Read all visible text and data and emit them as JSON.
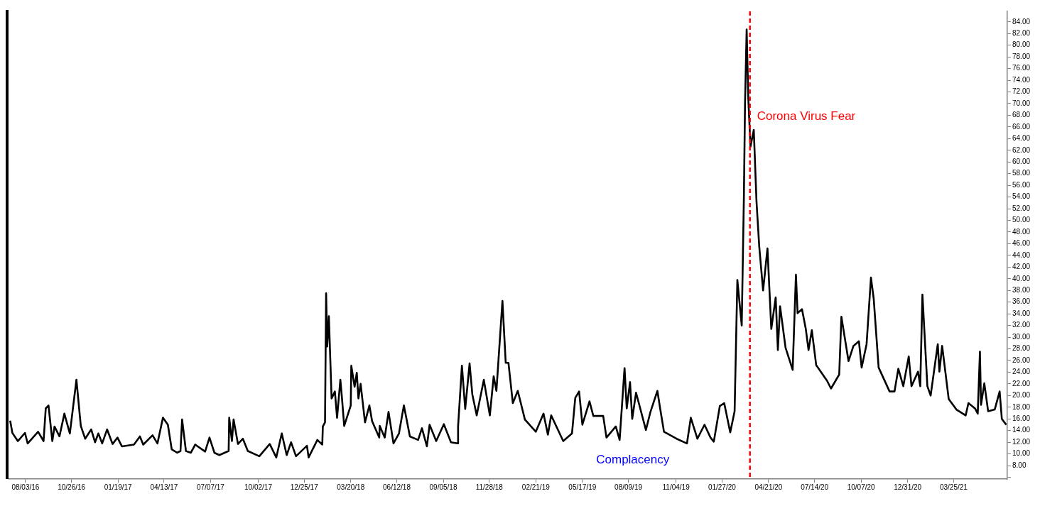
{
  "chart_data": {
    "type": "line",
    "x": [
      "2016-07-06",
      "2016-07-10",
      "2016-07-20",
      "2016-08-02",
      "2016-08-07",
      "2016-08-26",
      "2016-09-05",
      "2016-09-09",
      "2016-09-14",
      "2016-09-21",
      "2016-09-25",
      "2016-10-04",
      "2016-10-13",
      "2016-10-23",
      "2016-11-04",
      "2016-11-12",
      "2016-11-20",
      "2016-12-01",
      "2016-12-08",
      "2016-12-14",
      "2016-12-21",
      "2016-12-30",
      "2017-01-09",
      "2017-01-18",
      "2017-01-26",
      "2017-02-17",
      "2017-02-28",
      "2017-03-06",
      "2017-03-23",
      "2017-04-01",
      "2017-04-11",
      "2017-04-20",
      "2017-04-27",
      "2017-05-07",
      "2017-05-13",
      "2017-05-16",
      "2017-05-23",
      "2017-06-01",
      "2017-06-09",
      "2017-06-27",
      "2017-07-05",
      "2017-07-14",
      "2017-07-23",
      "2017-08-09",
      "2017-08-10",
      "2017-08-15",
      "2017-08-18",
      "2017-08-26",
      "2017-09-04",
      "2017-09-13",
      "2017-10-04",
      "2017-10-23",
      "2017-11-04",
      "2017-11-14",
      "2017-11-23",
      "2017-12-01",
      "2017-12-10",
      "2017-12-30",
      "2018-01-02",
      "2018-01-18",
      "2018-01-27",
      "2018-01-28",
      "2018-02-01",
      "2018-02-03",
      "2018-02-05",
      "2018-02-08",
      "2018-02-13",
      "2018-02-19",
      "2018-02-23",
      "2018-03-01",
      "2018-03-04",
      "2018-03-08",
      "2018-03-20",
      "2018-03-21",
      "2018-03-27",
      "2018-03-31",
      "2018-04-03",
      "2018-04-07",
      "2018-04-15",
      "2018-04-23",
      "2018-04-28",
      "2018-05-11",
      "2018-05-12",
      "2018-05-21",
      "2018-05-28",
      "2018-06-06",
      "2018-06-16",
      "2018-06-25",
      "2018-07-06",
      "2018-07-21",
      "2018-07-28",
      "2018-08-06",
      "2018-08-11",
      "2018-08-23",
      "2018-09-06",
      "2018-09-19",
      "2018-10-01",
      "2018-10-02",
      "2018-10-09",
      "2018-10-15",
      "2018-10-23",
      "2018-10-28",
      "2018-11-05",
      "2018-11-18",
      "2018-11-29",
      "2018-12-06",
      "2018-12-11",
      "2018-12-22",
      "2018-12-28",
      "2019-01-02",
      "2019-01-10",
      "2019-01-19",
      "2019-02-01",
      "2019-02-21",
      "2019-03-07",
      "2019-03-15",
      "2019-03-21",
      "2019-04-12",
      "2019-04-28",
      "2019-05-04",
      "2019-05-11",
      "2019-05-17",
      "2019-05-30",
      "2019-06-06",
      "2019-06-24",
      "2019-06-30",
      "2019-07-17",
      "2019-07-24",
      "2019-08-02",
      "2019-08-06",
      "2019-08-12",
      "2019-08-16",
      "2019-08-23",
      "2019-09-10",
      "2019-09-18",
      "2019-10-01",
      "2019-10-06",
      "2019-10-13",
      "2019-11-05",
      "2019-11-24",
      "2019-12-01",
      "2019-12-13",
      "2019-12-26",
      "2020-01-06",
      "2020-01-12",
      "2020-01-23",
      "2020-01-31",
      "2020-02-11",
      "2020-02-19",
      "2020-02-24",
      "2020-03-03",
      "2020-03-07",
      "2020-03-09",
      "2020-03-12",
      "2020-03-15",
      "2020-03-19",
      "2020-03-25",
      "2020-03-30",
      "2020-04-04",
      "2020-04-11",
      "2020-04-19",
      "2020-04-26",
      "2020-05-04",
      "2020-05-08",
      "2020-05-12",
      "2020-05-22",
      "2020-06-04",
      "2020-06-10",
      "2020-06-13",
      "2020-06-21",
      "2020-06-28",
      "2020-07-03",
      "2020-07-09",
      "2020-07-17",
      "2020-08-06",
      "2020-08-13",
      "2020-08-28",
      "2020-09-01",
      "2020-09-14",
      "2020-09-23",
      "2020-10-03",
      "2020-10-08",
      "2020-10-17",
      "2020-10-25",
      "2020-10-30",
      "2020-11-08",
      "2020-11-28",
      "2020-12-07",
      "2020-12-14",
      "2020-12-23",
      "2021-01-02",
      "2021-01-07",
      "2021-01-19",
      "2021-01-23",
      "2021-01-27",
      "2021-02-05",
      "2021-02-11",
      "2021-02-24",
      "2021-02-27",
      "2021-03-04",
      "2021-03-16",
      "2021-03-30",
      "2021-04-16",
      "2021-04-21",
      "2021-05-03",
      "2021-05-08",
      "2021-05-12",
      "2021-05-14",
      "2021-05-20",
      "2021-05-27",
      "2021-06-08",
      "2021-06-17",
      "2021-06-21",
      "2021-06-29"
    ],
    "series": [
      {
        "color": "#000000",
        "values": [
          15.7,
          13.6,
          12.2,
          13.6,
          11.8,
          13.8,
          12.2,
          17.8,
          18.3,
          12.2,
          14.7,
          13.0,
          16.9,
          13.5,
          22.7,
          14.8,
          12.6,
          14.2,
          12.0,
          13.5,
          11.8,
          14.2,
          11.7,
          12.8,
          11.3,
          11.6,
          13.0,
          11.6,
          13.2,
          11.8,
          16.2,
          15.0,
          10.8,
          10.2,
          10.5,
          15.9,
          10.5,
          10.2,
          11.6,
          10.4,
          12.8,
          10.2,
          9.8,
          10.5,
          16.2,
          12.2,
          15.9,
          11.7,
          12.6,
          10.5,
          9.6,
          11.7,
          9.4,
          13.5,
          9.8,
          12.0,
          9.6,
          11.4,
          9.4,
          12.4,
          11.6,
          14.7,
          15.4,
          37.5,
          28.4,
          33.6,
          19.5,
          20.7,
          16.2,
          22.7,
          19.5,
          14.8,
          18.3,
          25.1,
          21.5,
          23.9,
          19.5,
          22.0,
          15.4,
          18.3,
          15.6,
          12.8,
          14.8,
          12.8,
          17.2,
          11.8,
          13.5,
          18.3,
          13.0,
          12.4,
          14.4,
          11.3,
          15.0,
          12.2,
          15.1,
          12.0,
          11.8,
          14.7,
          25.1,
          17.7,
          25.5,
          20.2,
          16.6,
          22.7,
          16.6,
          23.3,
          20.8,
          36.2,
          25.6,
          25.6,
          18.7,
          20.8,
          15.9,
          13.8,
          16.9,
          13.3,
          16.6,
          12.2,
          13.5,
          19.6,
          20.7,
          15.0,
          19.0,
          16.5,
          16.5,
          12.8,
          14.7,
          12.4,
          24.7,
          17.8,
          22.3,
          16.0,
          20.5,
          14.1,
          17.1,
          20.8,
          17.8,
          13.8,
          12.6,
          11.8,
          16.2,
          12.6,
          15.0,
          12.8,
          12.1,
          18.2,
          18.7,
          13.7,
          17.3,
          39.8,
          32.0,
          54.3,
          69.9,
          82.7,
          70.9,
          62.6,
          65.5,
          53.2,
          45.5,
          38.0,
          45.2,
          31.4,
          36.8,
          27.8,
          35.3,
          28.2,
          24.4,
          40.7,
          34.1,
          34.8,
          31.4,
          27.8,
          31.2,
          25.2,
          22.5,
          21.2,
          23.6,
          33.5,
          25.9,
          28.5,
          29.3,
          24.8,
          28.8,
          40.2,
          36.6,
          24.8,
          20.7,
          20.7,
          24.6,
          21.6,
          26.7,
          21.6,
          24.1,
          21.6,
          37.3,
          21.6,
          20.0,
          28.8,
          24.1,
          28.5,
          19.4,
          17.6,
          16.6,
          18.7,
          17.8,
          16.9,
          27.5,
          18.4,
          22.1,
          17.3,
          17.6,
          20.7,
          16.0,
          15.0
        ]
      }
    ],
    "xlim": [
      "2016-07-03",
      "2021-07-01"
    ],
    "xticks": [
      {
        "value": "2016-08-03",
        "label": "08/03/16"
      },
      {
        "value": "2016-10-26",
        "label": "10/26/16"
      },
      {
        "value": "2017-01-19",
        "label": "01/19/17"
      },
      {
        "value": "2017-04-13",
        "label": "04/13/17"
      },
      {
        "value": "2017-07-07",
        "label": "07/07/17"
      },
      {
        "value": "2017-10-02",
        "label": "10/02/17"
      },
      {
        "value": "2017-12-25",
        "label": "12/25/17"
      },
      {
        "value": "2018-03-20",
        "label": "03/20/18"
      },
      {
        "value": "2018-06-12",
        "label": "06/12/18"
      },
      {
        "value": "2018-09-05",
        "label": "09/05/18"
      },
      {
        "value": "2018-11-28",
        "label": "11/28/18"
      },
      {
        "value": "2019-02-21",
        "label": "02/21/19"
      },
      {
        "value": "2019-05-17",
        "label": "05/17/19"
      },
      {
        "value": "2019-08-09",
        "label": "08/09/19"
      },
      {
        "value": "2019-11-04",
        "label": "11/04/19"
      },
      {
        "value": "2020-01-27",
        "label": "01/27/20"
      },
      {
        "value": "2020-04-21",
        "label": "04/21/20"
      },
      {
        "value": "2020-07-14",
        "label": "07/14/20"
      },
      {
        "value": "2020-10-07",
        "label": "10/07/20"
      },
      {
        "value": "2020-12-31",
        "label": "12/31/20"
      },
      {
        "value": "2021-03-25",
        "label": "03/25/21"
      }
    ],
    "ylim": [
      5.7,
      85.8
    ],
    "yticks": [
      {
        "value": 6,
        "label": null
      },
      {
        "value": 8,
        "label": "8.00"
      },
      {
        "value": 10,
        "label": "10.00"
      },
      {
        "value": 12,
        "label": "12.00"
      },
      {
        "value": 14,
        "label": "14.00"
      },
      {
        "value": 16,
        "label": "16.00"
      },
      {
        "value": 18,
        "label": "18.00"
      },
      {
        "value": 20,
        "label": "20.00"
      },
      {
        "value": 22,
        "label": "22.00"
      },
      {
        "value": 24,
        "label": "24.00"
      },
      {
        "value": 26,
        "label": "26.00"
      },
      {
        "value": 28,
        "label": "28.00"
      },
      {
        "value": 30,
        "label": "30.00"
      },
      {
        "value": 32,
        "label": "32.00"
      },
      {
        "value": 34,
        "label": "34.00"
      },
      {
        "value": 36,
        "label": "36.00"
      },
      {
        "value": 38,
        "label": "38.00"
      },
      {
        "value": 40,
        "label": "40.00"
      },
      {
        "value": 42,
        "label": "42.00"
      },
      {
        "value": 44,
        "label": "44.00"
      },
      {
        "value": 46,
        "label": "46.00"
      },
      {
        "value": 48,
        "label": "48.00"
      },
      {
        "value": 50,
        "label": "50.00"
      },
      {
        "value": 52,
        "label": "52.00"
      },
      {
        "value": 54,
        "label": "54.00"
      },
      {
        "value": 56,
        "label": "56.00"
      },
      {
        "value": 58,
        "label": "58.00"
      },
      {
        "value": 60,
        "label": "60.00"
      },
      {
        "value": 62,
        "label": "62.00"
      },
      {
        "value": 64,
        "label": "64.00"
      },
      {
        "value": 66,
        "label": "66.00"
      },
      {
        "value": 68,
        "label": "68.00"
      },
      {
        "value": 70,
        "label": "70.00"
      },
      {
        "value": 72,
        "label": "72.00"
      },
      {
        "value": 74,
        "label": "74.00"
      },
      {
        "value": 76,
        "label": "76.00"
      },
      {
        "value": 78,
        "label": "78.00"
      },
      {
        "value": 80,
        "label": "80.00"
      },
      {
        "value": 82,
        "label": "82.00"
      },
      {
        "value": 84,
        "label": "84.00"
      }
    ],
    "ref_lines": [
      {
        "axis": "x",
        "value": "2020-03-18",
        "label": "Corona Virus Fear",
        "color": "#ff0000",
        "line_style": "dashed"
      }
    ],
    "annotations": [
      "Complacency"
    ],
    "grid": false,
    "legend": false,
    "marker": "none",
    "line_style": "solid"
  }
}
